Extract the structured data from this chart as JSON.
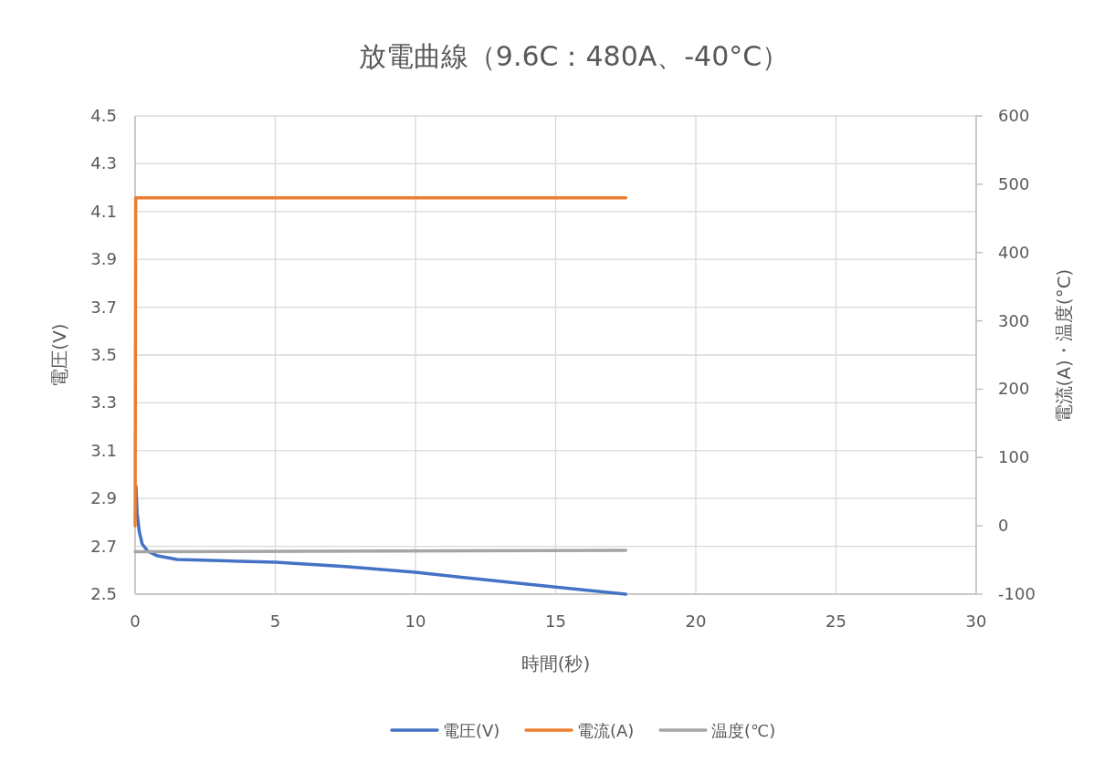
{
  "chart_data": {
    "type": "line",
    "title": "放電曲線（9.6C：480A、-40°C）",
    "xlabel": "時間(秒)",
    "ylabel": "電圧(V)",
    "y2label": "電流(A)・温度(°C)",
    "xlim": [
      0,
      30
    ],
    "xticks": [
      0,
      5,
      10,
      15,
      20,
      25,
      30
    ],
    "ylim": [
      2.5,
      4.5
    ],
    "yticks": [
      {
        "value": 2.5,
        "label": "2.5"
      },
      {
        "value": 2.7,
        "label": "2.7"
      },
      {
        "value": 2.9,
        "label": "2.9"
      },
      {
        "value": 3.1,
        "label": "3.1"
      },
      {
        "value": 3.3,
        "label": "3.3"
      },
      {
        "value": 3.5,
        "label": "3.5"
      },
      {
        "value": 3.7,
        "label": "3.7"
      },
      {
        "value": 3.9,
        "label": "3.9"
      },
      {
        "value": 4.1,
        "label": "4.1"
      },
      {
        "value": 4.3,
        "label": "4.3"
      },
      {
        "value": 4.5,
        "label": "4.5"
      }
    ],
    "y2lim": [
      -100,
      600
    ],
    "y2ticks": [
      -100,
      0,
      100,
      200,
      300,
      400,
      500,
      600
    ],
    "grid": true,
    "legend": "bottom",
    "series": [
      {
        "name": "電圧(V)",
        "color": "#4472c4",
        "x": [
          0.03,
          0.07,
          0.15,
          0.25,
          0.45,
          0.8,
          1.5,
          3,
          5,
          7.5,
          10,
          12.5,
          15,
          17.5
        ],
        "values": [
          2.95,
          2.84,
          2.76,
          2.71,
          2.68,
          2.66,
          2.645,
          2.64,
          2.634,
          2.615,
          2.592,
          2.56,
          2.53,
          2.5
        ]
      },
      {
        "name": "電流(A)",
        "color": "#ed7d31",
        "axis": "y2",
        "x": [
          0,
          0.02,
          17.5
        ],
        "values": [
          0,
          480,
          480
        ]
      },
      {
        "name": "温度(℃)",
        "color": "#a5a5a5",
        "axis": "y2",
        "x": [
          0,
          17.5
        ],
        "values": [
          -38,
          -36
        ]
      }
    ]
  }
}
